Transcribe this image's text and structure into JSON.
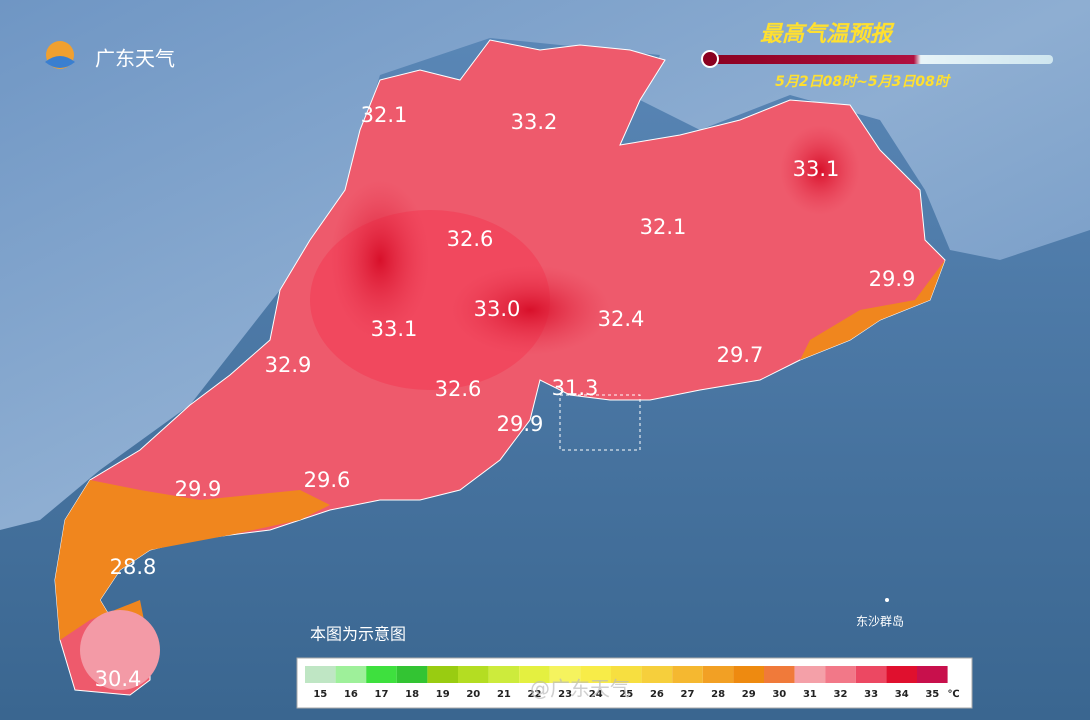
{
  "logo": "广东天气",
  "title": "最高气温预报",
  "subtitle": "5月2日08时~5月3日08时",
  "note": "本图为示意图",
  "island_label": "东沙群岛",
  "watermark": "@广东天气",
  "temperatures": [
    "32.1",
    "33.2",
    "33.1",
    "32.6",
    "32.1",
    "29.9",
    "33.0",
    "33.1",
    "32.4",
    "32.9",
    "29.7",
    "32.6",
    "31.3",
    "29.9",
    "29.9",
    "29.6",
    "28.8",
    "30.4"
  ],
  "legend": {
    "unit": "℃",
    "values": [
      15,
      16,
      17,
      18,
      19,
      20,
      21,
      22,
      23,
      24,
      25,
      26,
      27,
      28,
      29,
      30,
      31,
      32,
      33,
      34,
      35
    ],
    "colors": [
      "#bfe6c4",
      "#9ef09a",
      "#3ee03e",
      "#33c433",
      "#99cc11",
      "#b4dd22",
      "#cdeb3c",
      "#e4f040",
      "#f5f35e",
      "#f8ec48",
      "#f7df40",
      "#f6cf3c",
      "#f5b830",
      "#f2a024",
      "#ee8a10",
      "#f07a3a",
      "#f4a0a8",
      "#f27888",
      "#ec4862",
      "#e0102e",
      "#c8104c"
    ]
  }
}
